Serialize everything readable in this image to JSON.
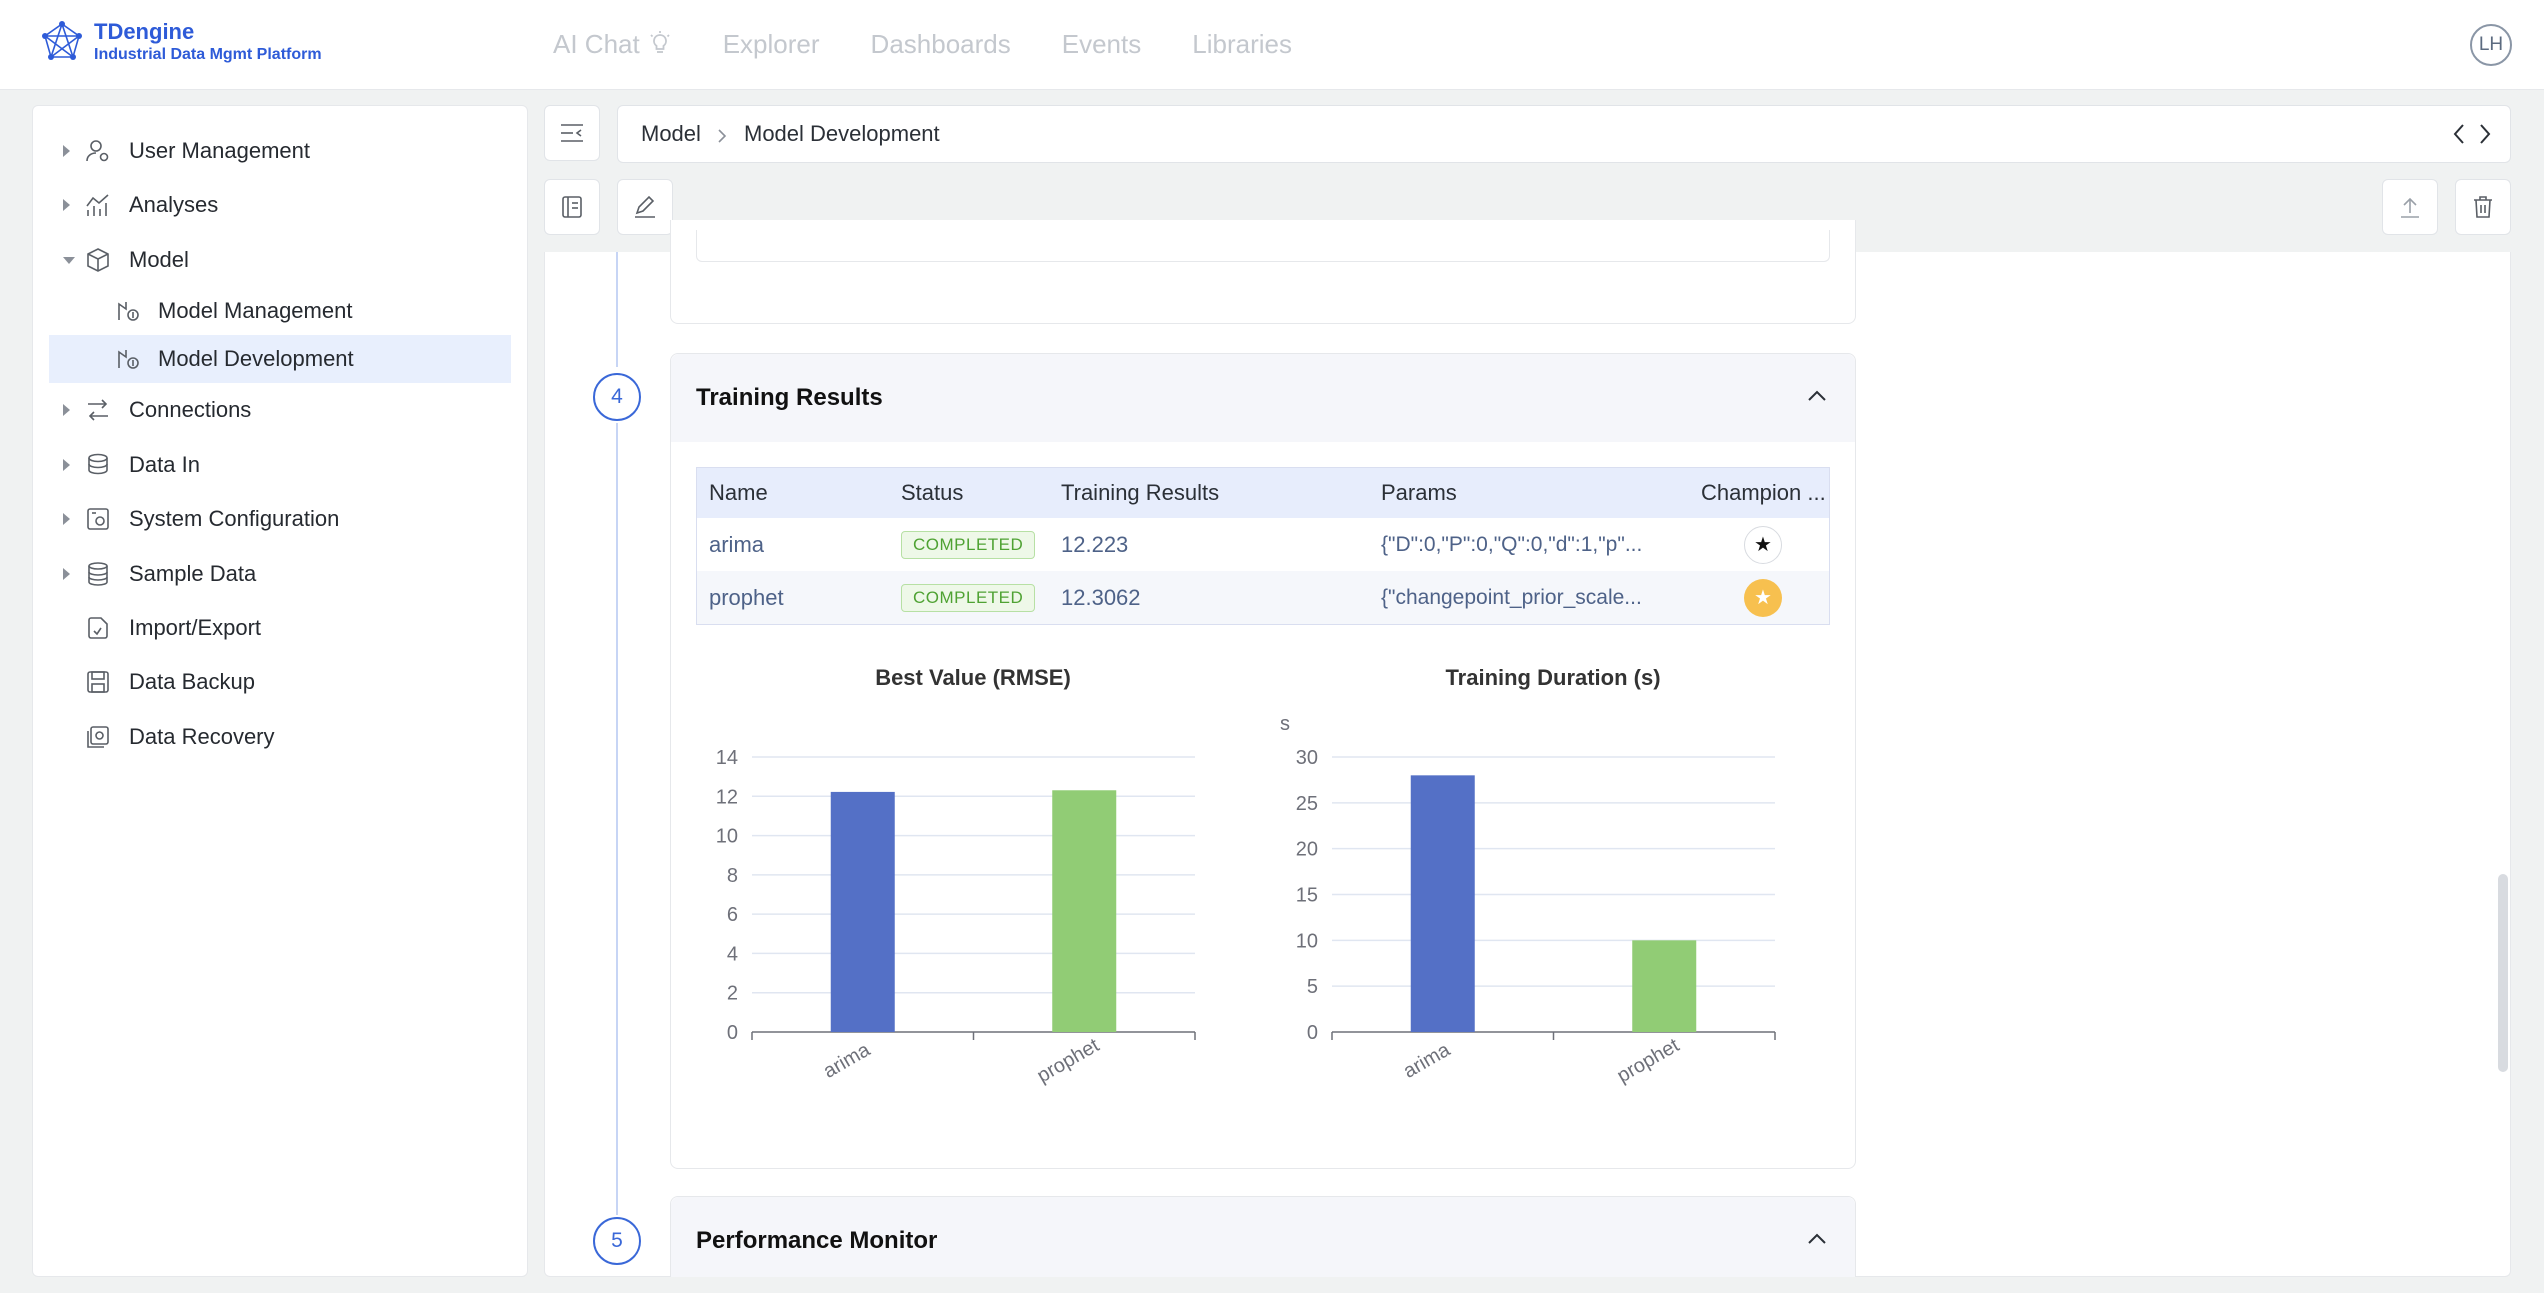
{
  "app": {
    "logo_title": "TDengine",
    "logo_subtitle": "Industrial Data Mgmt Platform",
    "user_initials": "LH"
  },
  "nav": {
    "items": [
      {
        "label": "AI Chat",
        "icon": "bulb-icon"
      },
      {
        "label": "Explorer"
      },
      {
        "label": "Dashboards"
      },
      {
        "label": "Events"
      },
      {
        "label": "Libraries"
      }
    ]
  },
  "sidebar": {
    "items": [
      {
        "label": "User Management",
        "icon": "user-settings-icon",
        "expandable": true,
        "expanded": false
      },
      {
        "label": "Analyses",
        "icon": "analytics-icon",
        "expandable": true,
        "expanded": false
      },
      {
        "label": "Model",
        "icon": "cube-icon",
        "expandable": true,
        "expanded": true
      },
      {
        "label": "Model Management",
        "icon": "model-icon",
        "child": true
      },
      {
        "label": "Model Development",
        "icon": "model-icon",
        "child": true,
        "active": true
      },
      {
        "label": "Connections",
        "icon": "connections-icon",
        "expandable": true,
        "expanded": false
      },
      {
        "label": "Data In",
        "icon": "data-in-icon",
        "expandable": true,
        "expanded": false
      },
      {
        "label": "System Configuration",
        "icon": "system-config-icon",
        "expandable": true,
        "expanded": false
      },
      {
        "label": "Sample Data",
        "icon": "database-icon",
        "expandable": true,
        "expanded": false
      },
      {
        "label": "Import/Export",
        "icon": "import-export-icon"
      },
      {
        "label": "Data Backup",
        "icon": "backup-icon"
      },
      {
        "label": "Data Recovery",
        "icon": "recovery-icon"
      }
    ]
  },
  "breadcrumb": {
    "items": [
      "Model",
      "Model Development"
    ]
  },
  "steps": {
    "training": {
      "number": "4",
      "title": "Training Results",
      "table": {
        "columns": [
          "Name",
          "Status",
          "Training Results",
          "Params",
          "Champion ..."
        ],
        "rows": [
          {
            "name": "arima",
            "status": "COMPLETED",
            "result": "12.223",
            "params": "{\"D\":0,\"P\":0,\"Q\":0,\"d\":1,\"p\"...",
            "champion": false
          },
          {
            "name": "prophet",
            "status": "COMPLETED",
            "result": "12.3062",
            "params": "{\"changepoint_prior_scale...",
            "champion": true
          }
        ]
      }
    },
    "monitor": {
      "number": "5",
      "title": "Performance Monitor"
    }
  },
  "colors": {
    "accent": "#3a68d8",
    "bar_arima": "#5470c6",
    "bar_prophet": "#91cc75",
    "champion_gold": "#f7c04f"
  },
  "chart_data": [
    {
      "type": "bar",
      "title": "Best Value (RMSE)",
      "categories": [
        "arima",
        "prophet"
      ],
      "values": [
        12.223,
        12.3062
      ],
      "ylim": [
        0,
        14
      ],
      "yticks": [
        0,
        2,
        4,
        6,
        8,
        10,
        12,
        14
      ],
      "ylabel": "",
      "grid": true
    },
    {
      "type": "bar",
      "title": "Training Duration (s)",
      "categories": [
        "arima",
        "prophet"
      ],
      "values": [
        28,
        10
      ],
      "ylim": [
        0,
        30
      ],
      "yticks": [
        0,
        5,
        10,
        15,
        20,
        25,
        30
      ],
      "ylabel": "s",
      "grid": true
    }
  ]
}
